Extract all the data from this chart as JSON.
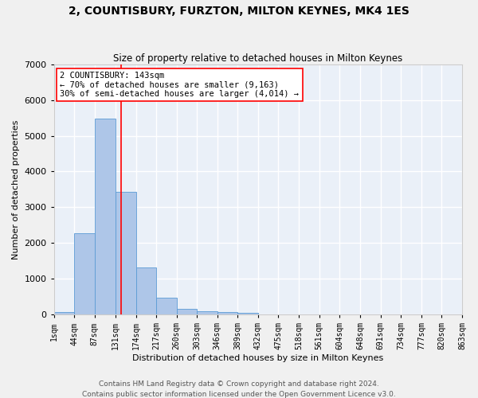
{
  "title": "2, COUNTISBURY, FURZTON, MILTON KEYNES, MK4 1ES",
  "subtitle": "Size of property relative to detached houses in Milton Keynes",
  "xlabel": "Distribution of detached houses by size in Milton Keynes",
  "ylabel": "Number of detached properties",
  "property_label": "2 COUNTISBURY: 143sqm",
  "annotation_line1": "← 70% of detached houses are smaller (9,163)",
  "annotation_line2": "30% of semi-detached houses are larger (4,014) →",
  "footer_line1": "Contains HM Land Registry data © Crown copyright and database right 2024.",
  "footer_line2": "Contains public sector information licensed under the Open Government Licence v3.0.",
  "bin_edges": [
    1,
    44,
    87,
    131,
    174,
    217,
    260,
    303,
    346,
    389,
    432,
    475,
    518,
    561,
    604,
    648,
    691,
    734,
    777,
    820,
    863
  ],
  "bar_values": [
    80,
    2280,
    5480,
    3440,
    1310,
    470,
    155,
    90,
    65,
    45,
    0,
    0,
    0,
    0,
    0,
    0,
    0,
    0,
    0,
    0
  ],
  "bar_color": "#aec6e8",
  "bar_edgecolor": "#5b9bd5",
  "vline_x": 143,
  "vline_color": "red",
  "ylim": [
    0,
    7000
  ],
  "background_color": "#eaf0f8",
  "grid_color": "#ffffff",
  "annotation_box_color": "#ffffff",
  "annotation_box_edgecolor": "red",
  "tick_label_fontsize": 7,
  "title_fontsize": 10,
  "subtitle_fontsize": 8.5,
  "ylabel_fontsize": 8,
  "xlabel_fontsize": 8,
  "footer_fontsize": 6.5,
  "annotation_fontsize": 7.5
}
